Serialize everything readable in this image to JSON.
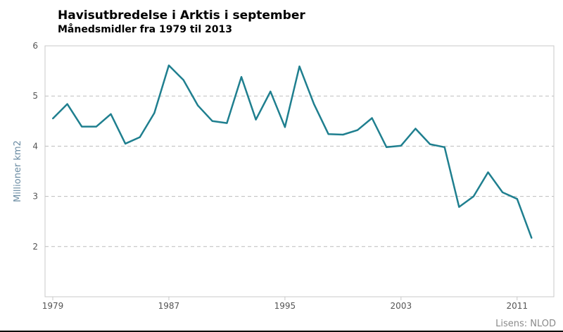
{
  "chart_data": {
    "type": "line",
    "title": "Havisutbredelse i Arktis i september",
    "subtitle": "Månedsmidler fra 1979 til 2013",
    "ylabel": "Millioner km2",
    "xlabel": "",
    "ylim": [
      1,
      6
    ],
    "xlim": [
      1979,
      2013
    ],
    "yticks": [
      2,
      3,
      4,
      5,
      6
    ],
    "xticks": [
      1979,
      1987,
      1995,
      2003,
      2011
    ],
    "grid": true,
    "line_color": "#1f7f8f",
    "series": [
      {
        "x": [
          1979,
          1980,
          1981,
          1982,
          1983,
          1984,
          1985,
          1986,
          1987,
          1988,
          1989,
          1990,
          1991,
          1992,
          1993,
          1994,
          1995,
          1996,
          1997,
          1998,
          1999,
          2000,
          2001,
          2002,
          2003,
          2004,
          2005,
          2006,
          2007,
          2008,
          2009,
          2010,
          2011,
          2012
        ],
        "values": [
          4.55,
          4.84,
          4.39,
          4.39,
          4.64,
          4.05,
          4.18,
          4.66,
          5.61,
          5.32,
          4.81,
          4.5,
          4.46,
          5.38,
          4.53,
          5.09,
          4.38,
          5.59,
          4.84,
          4.24,
          4.23,
          4.32,
          4.56,
          3.98,
          4.01,
          4.35,
          4.04,
          3.98,
          2.79,
          3.0,
          3.48,
          3.08,
          2.95,
          2.17
        ]
      }
    ]
  },
  "footer": {
    "license": "Lisens: NLOD"
  }
}
